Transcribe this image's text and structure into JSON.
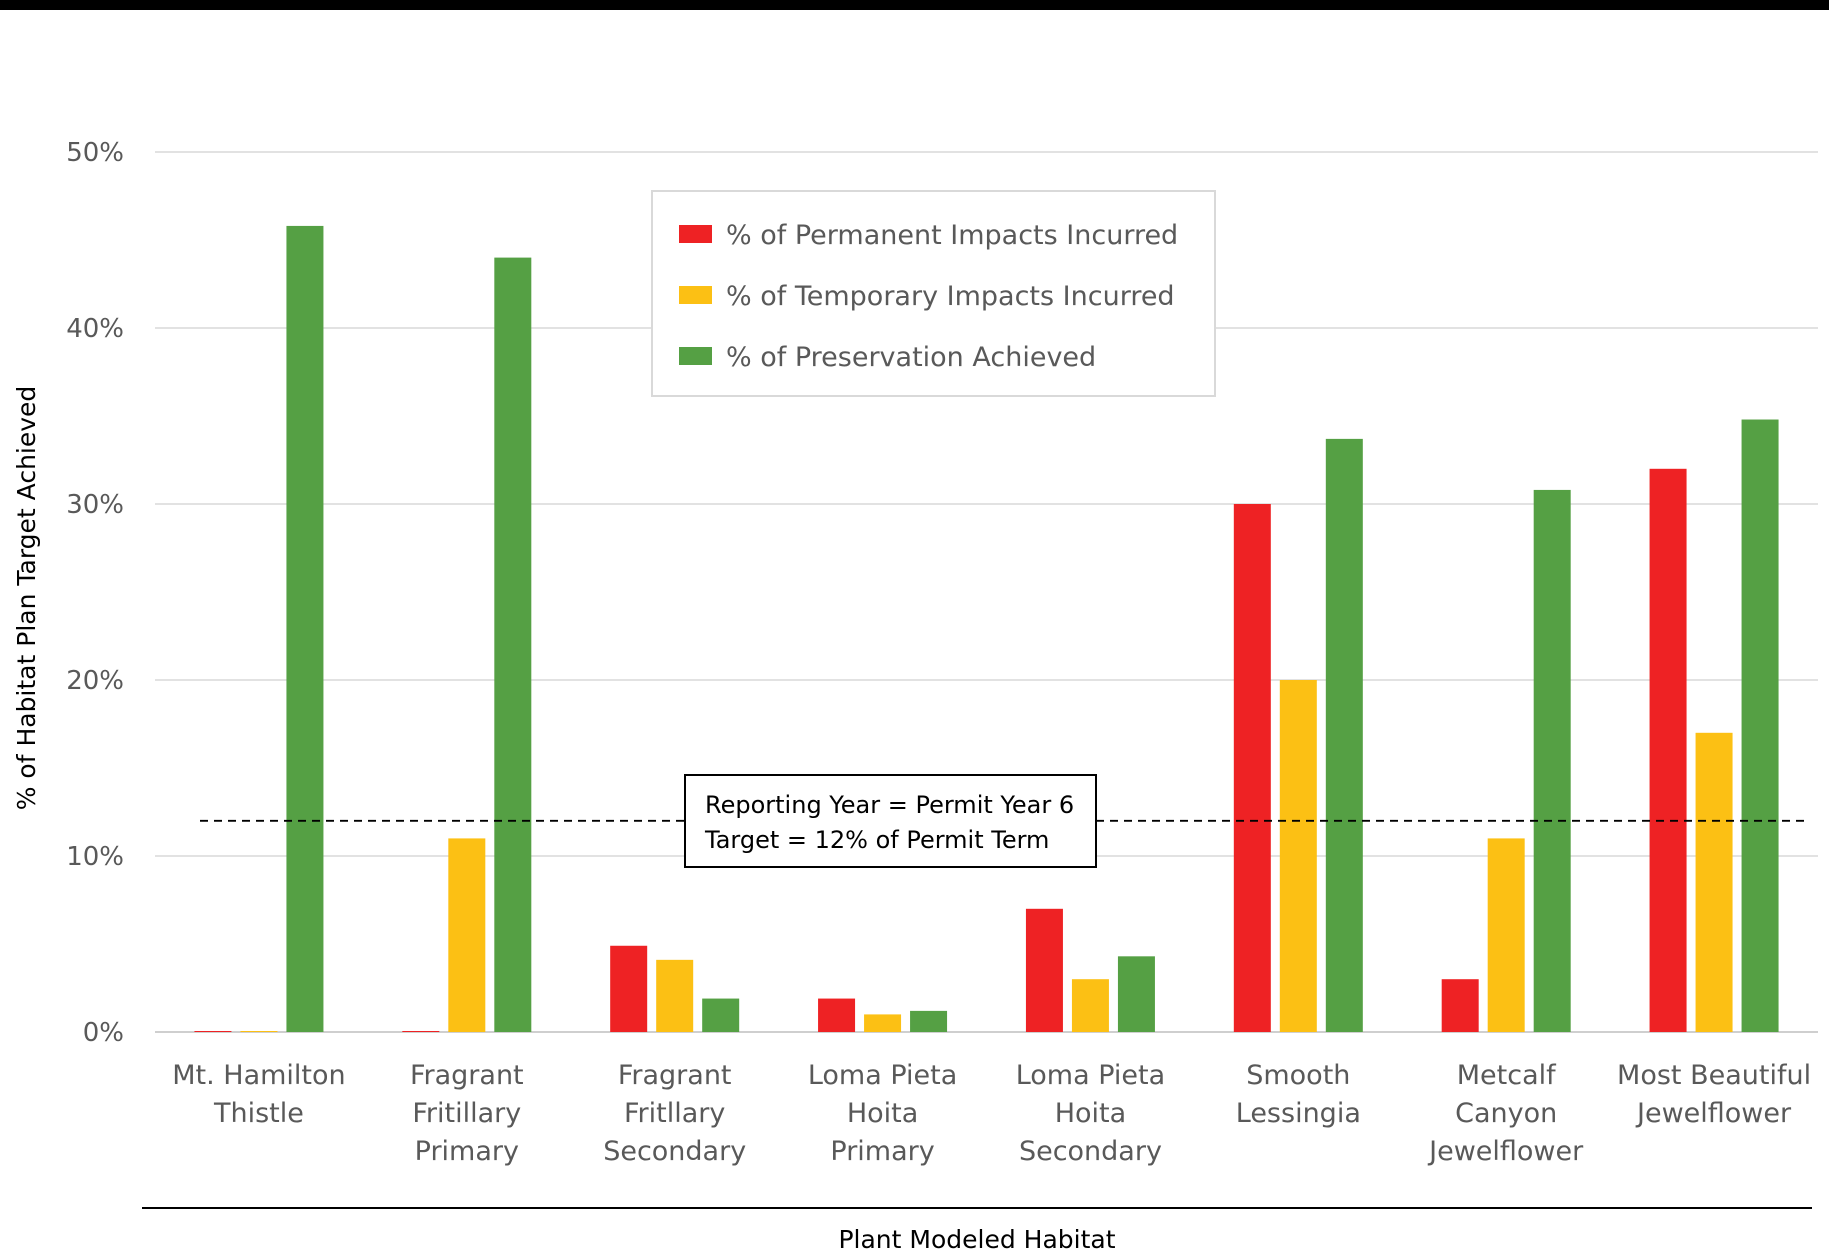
{
  "chart_data": {
    "type": "bar",
    "title": "",
    "xlabel": "Plant Modeled Habitat",
    "ylabel": "% of Habitat Plan Target Achieved",
    "ylim": [
      0,
      50
    ],
    "yticks": [
      "0%",
      "10%",
      "20%",
      "30%",
      "40%",
      "50%"
    ],
    "grid": true,
    "legend_position": "top-center",
    "categories": [
      [
        "Mt. Hamilton",
        "Thistle"
      ],
      [
        "Fragrant",
        "Fritillary",
        "Primary"
      ],
      [
        "Fragrant",
        "Fritllary",
        "Secondary"
      ],
      [
        "Loma Pieta",
        "Hoita",
        "Primary"
      ],
      [
        "Loma Pieta",
        "Hoita",
        "Secondary"
      ],
      [
        "Smooth",
        "Lessingia"
      ],
      [
        "Metcalf",
        "Canyon",
        "Jewelflower"
      ],
      [
        "Most Beautiful",
        "Jewelflower"
      ]
    ],
    "series": [
      {
        "name": "% of Permanent Impacts Incurred",
        "color": "#ee2224",
        "values": [
          0,
          0,
          4.9,
          1.9,
          7.0,
          30.0,
          3.0,
          32.0
        ]
      },
      {
        "name": "% of Temporary Impacts Incurred",
        "color": "#fcc014",
        "values": [
          0,
          11.0,
          4.1,
          1.0,
          3.0,
          20.0,
          11.0,
          17.0
        ]
      },
      {
        "name": "% of Preservation Achieved",
        "color": "#55a044",
        "values": [
          45.8,
          44.0,
          1.9,
          1.2,
          4.3,
          33.7,
          30.8,
          34.8
        ]
      }
    ],
    "reference_line": {
      "value": 12,
      "style": "dashed"
    },
    "annotation": [
      "Reporting Year = Permit Year 6",
      "Target = 12% of Permit Term"
    ]
  }
}
